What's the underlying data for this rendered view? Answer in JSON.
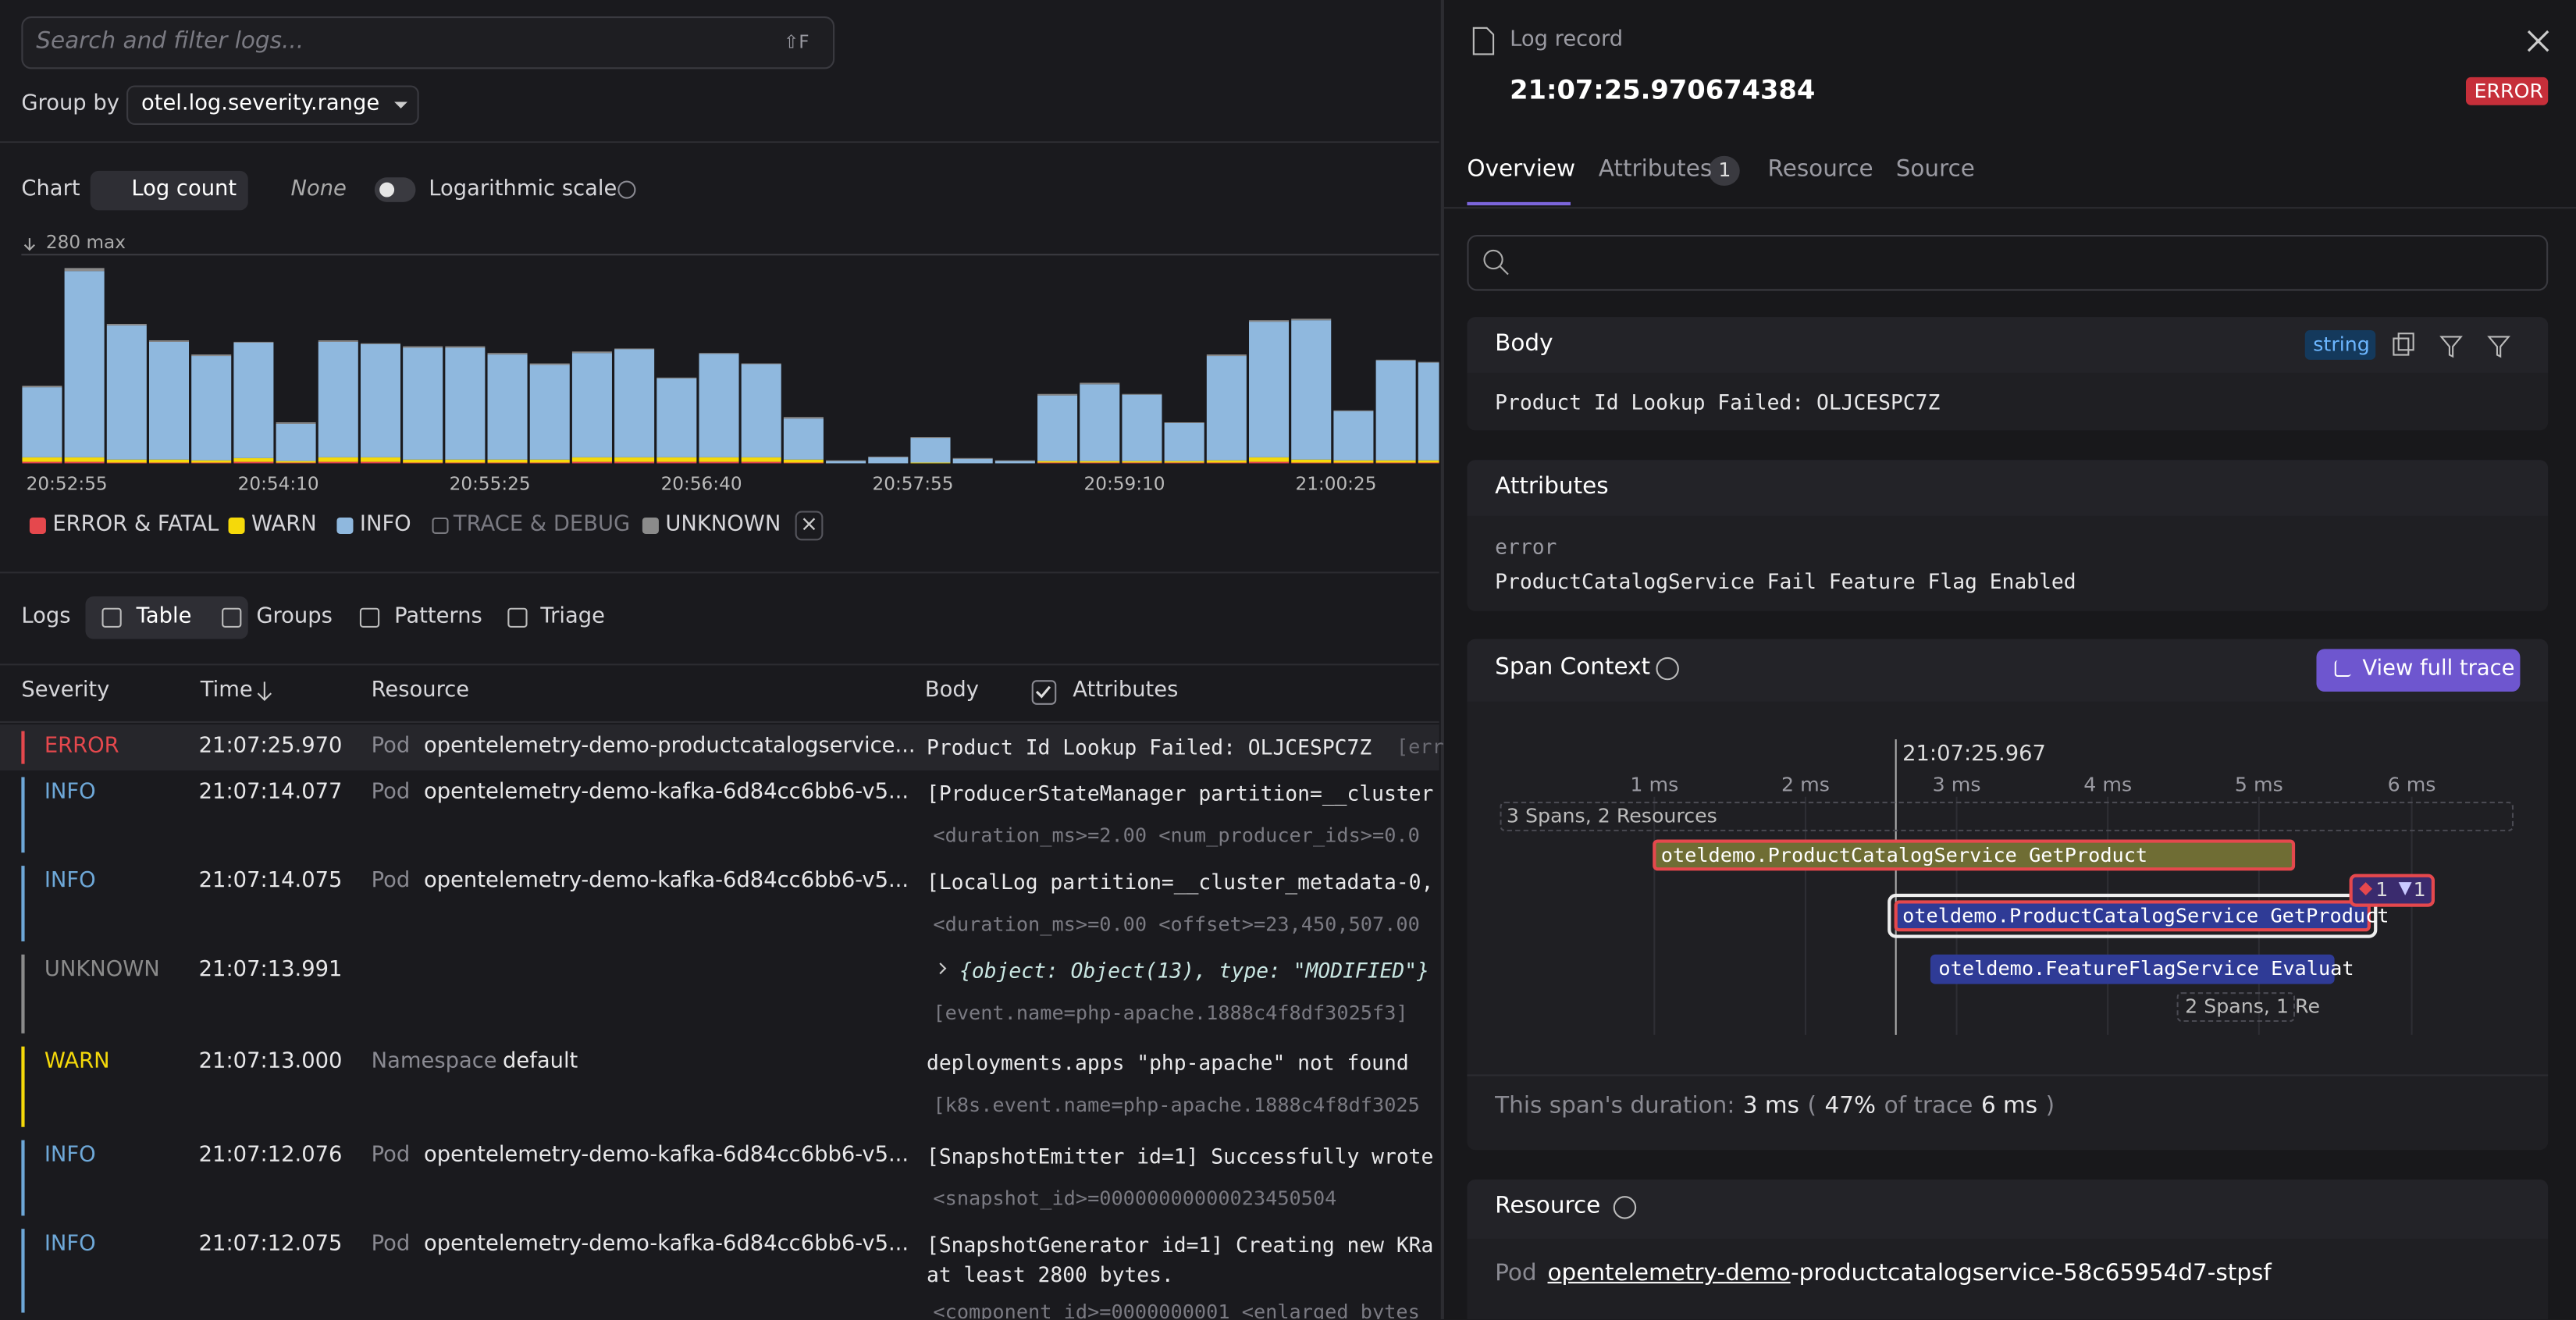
{
  "search": {
    "placeholder": "Search and filter logs...",
    "shortcut": "⇧F"
  },
  "group_by": {
    "label": "Group by",
    "value": "otel.log.severity.range"
  },
  "chart_controls": {
    "label": "Chart",
    "metric": "Log count",
    "split": "None",
    "log_scale_label": "Logarithmic scale",
    "log_scale": false
  },
  "chart_data": {
    "type": "bar",
    "stacked": true,
    "ylim": [
      0,
      280
    ],
    "yticks": [
      {
        "value": 280,
        "label": "280 max"
      }
    ],
    "categories": [
      "20:52:55",
      null,
      null,
      null,
      null,
      "20:54:10",
      null,
      null,
      null,
      null,
      "20:55:25",
      null,
      null,
      null,
      null,
      "20:56:40",
      null,
      null,
      null,
      null,
      "20:57:55",
      null,
      null,
      null,
      null,
      "20:59:10",
      null,
      null,
      null,
      null,
      "21:00:25",
      null,
      null,
      null
    ],
    "series": [
      {
        "name": "ERROR & FATAL",
        "color": "#e5484d",
        "visible": true,
        "values": [
          2,
          2,
          1,
          1,
          1,
          2,
          1,
          2,
          2,
          1,
          1,
          1,
          1,
          2,
          2,
          2,
          2,
          2,
          1,
          0,
          0,
          0,
          0,
          0,
          1,
          1,
          1,
          1,
          1,
          2,
          1,
          1,
          1,
          1
        ]
      },
      {
        "name": "WARN",
        "color": "#f5d90a",
        "visible": true,
        "values": [
          6,
          6,
          4,
          4,
          3,
          5,
          2,
          6,
          6,
          4,
          4,
          4,
          4,
          6,
          6,
          6,
          6,
          6,
          4,
          0,
          0,
          1,
          0,
          0,
          2,
          2,
          2,
          2,
          3,
          6,
          4,
          3,
          3,
          3
        ]
      },
      {
        "name": "INFO",
        "color": "#8fb8de",
        "visible": true,
        "values": [
          94,
          250,
          180,
          158,
          140,
          155,
          50,
          155,
          152,
          150,
          150,
          141,
          127,
          140,
          145,
          106,
          139,
          125,
          55,
          3,
          8,
          33,
          6,
          3,
          88,
          103,
          89,
          51,
          140,
          182,
          187,
          66,
          134,
          131
        ]
      },
      {
        "name": "TRACE & DEBUG",
        "color": "#7a7a80",
        "visible": false,
        "values": [
          0,
          0,
          0,
          0,
          0,
          0,
          0,
          0,
          0,
          0,
          0,
          0,
          0,
          0,
          0,
          0,
          0,
          0,
          0,
          0,
          0,
          0,
          0,
          0,
          0,
          0,
          0,
          0,
          0,
          0,
          0,
          0,
          0,
          0
        ]
      },
      {
        "name": "UNKNOWN",
        "color": "#8b8b8b",
        "visible": true,
        "values": [
          2,
          4,
          2,
          2,
          2,
          1,
          2,
          2,
          1,
          2,
          2,
          2,
          2,
          2,
          1,
          1,
          1,
          1,
          2,
          1,
          1,
          1,
          1,
          1,
          2,
          2,
          1,
          1,
          2,
          2,
          2,
          1,
          1,
          1
        ]
      }
    ]
  },
  "view_tabs": {
    "label": "Logs",
    "tabs": [
      "Table",
      "Groups",
      "Patterns",
      "Triage"
    ],
    "active": 0
  },
  "table": {
    "columns": [
      "Severity",
      "Time",
      "Resource",
      "Body",
      "Attributes"
    ],
    "rows": [
      {
        "severity": "ERROR",
        "color": "#e5484d",
        "time": "21:07:25.970",
        "resource_kind": "Pod",
        "resource": "opentelemetry-demo-productcatalogservice...",
        "body": [
          "Product Id Lookup Failed: OLJCESPC7Z"
        ],
        "suffix": "[err"
      },
      {
        "severity": "INFO",
        "color": "#6ea8d8",
        "time": "21:07:14.077",
        "resource_kind": "Pod",
        "resource": "opentelemetry-demo-kafka-6d84cc6bb6-v5...",
        "body": [
          "[ProducerStateManager partition=__cluster"
        ],
        "attrs": "<duration_ms>=2.00 <num_producer_ids>=0.0"
      },
      {
        "severity": "INFO",
        "color": "#6ea8d8",
        "time": "21:07:14.075",
        "resource_kind": "Pod",
        "resource": "opentelemetry-demo-kafka-6d84cc6bb6-v5...",
        "body": [
          "[LocalLog partition=__cluster_metadata-0,"
        ],
        "attrs": "<duration_ms>=0.00 <offset>=23,450,507.00"
      },
      {
        "severity": "UNKNOWN",
        "color": "#8b8b8b",
        "time": "21:07:13.991",
        "body": [
          "{object: Object(13), type: \"MODIFIED\"}"
        ],
        "attrs": "[event.name=php-apache.1888c4f8df3025f3]"
      },
      {
        "severity": "WARN",
        "color": "#f5d90a",
        "time": "21:07:13.000",
        "resource_kind": "Namespace",
        "resource": "default",
        "body": [
          "deployments.apps \"php-apache\" not found"
        ],
        "attrs": "[k8s.event.name=php-apache.1888c4f8df3025"
      },
      {
        "severity": "INFO",
        "color": "#6ea8d8",
        "time": "21:07:12.076",
        "resource_kind": "Pod",
        "resource": "opentelemetry-demo-kafka-6d84cc6bb6-v5...",
        "body": [
          "[SnapshotEmitter id=1] Successfully wrote"
        ],
        "attrs": "<snapshot_id>=00000000000023450504"
      },
      {
        "severity": "INFO",
        "color": "#6ea8d8",
        "time": "21:07:12.075",
        "resource_kind": "Pod",
        "resource": "opentelemetry-demo-kafka-6d84cc6bb6-v5...",
        "body": [
          "[SnapshotGenerator id=1] Creating new KRa",
          "at least 2800 bytes."
        ],
        "attrs": "<component_id>=0000000001 <enlarged_bytes"
      }
    ]
  },
  "detail": {
    "header": {
      "kind": "Log record",
      "timestamp": "21:07:25.970674384",
      "severity": "ERROR"
    },
    "tabs": [
      {
        "label": "Overview"
      },
      {
        "label": "Attributes",
        "count": "1"
      },
      {
        "label": "Resource"
      },
      {
        "label": "Source"
      }
    ],
    "body": {
      "title": "Body",
      "type": "string",
      "text": "Product Id Lookup Failed: OLJCESPC7Z"
    },
    "attributes": {
      "title": "Attributes",
      "key": "error",
      "value": "ProductCatalogService Fail Feature Flag Enabled"
    },
    "span_context": {
      "title": "Span Context",
      "button": "View full trace",
      "marker": "21:07:25.967",
      "ticks": [
        "1 ms",
        "2 ms",
        "3 ms",
        "4 ms",
        "5 ms",
        "6 ms"
      ],
      "group": "3 Spans, 2 Resources",
      "spans": [
        "oteldemo.ProductCatalogService GetProduct",
        "oteldemo.ProductCatalogService GetProduct",
        "oteldemo.FeatureFlagService Evaluat"
      ],
      "badges": [
        "1",
        "1"
      ],
      "subgroup": "2 Spans, 1 Re",
      "duration": [
        "This span's duration:",
        "3 ms",
        "(",
        "47%",
        "of trace",
        "6 ms",
        ")"
      ]
    },
    "resource": {
      "title": "Resource",
      "kind": "Pod",
      "link": "opentelemetry-demo",
      "rest": "-productcatalogservice-58c65954d7-stpsf"
    }
  }
}
